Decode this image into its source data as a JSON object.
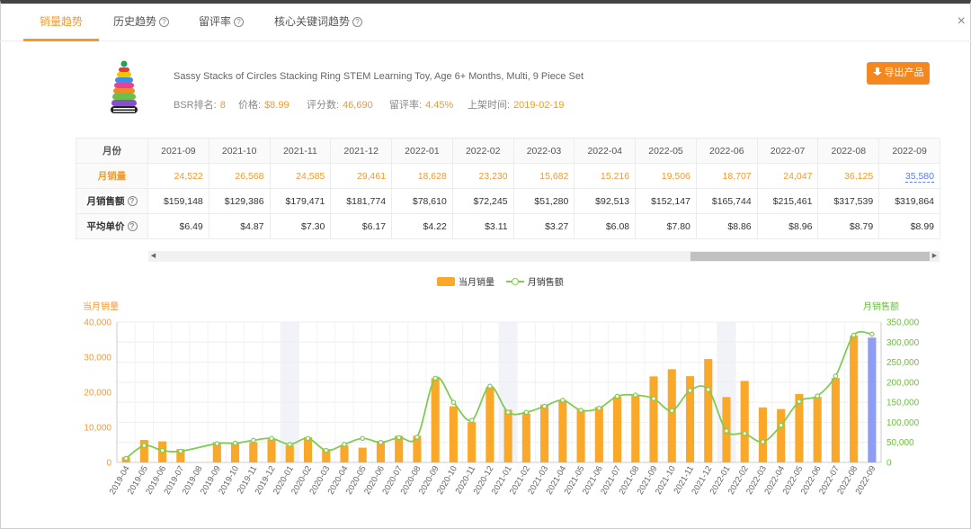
{
  "tabs": [
    {
      "label": "销量趋势",
      "active": true,
      "help": false
    },
    {
      "label": "历史趋势",
      "active": false,
      "help": true
    },
    {
      "label": "留评率",
      "active": false,
      "help": true
    },
    {
      "label": "核心关键词趋势",
      "active": false,
      "help": true
    }
  ],
  "close_label": "×",
  "product": {
    "title": "Sassy Stacks of Circles Stacking Ring STEM Learning Toy, Age 6+ Months, Multi, 9 Piece Set",
    "meta": [
      {
        "key": "BSR排名:",
        "value": "8"
      },
      {
        "key": "价格:",
        "value": "$8.99"
      },
      {
        "key": "评分数:",
        "value": "46,690"
      },
      {
        "key": "留评率:",
        "value": "4.45%"
      },
      {
        "key": "上架时间:",
        "value": "2019-02-19"
      }
    ],
    "export_label": "导出产品"
  },
  "table": {
    "header_label": "月份",
    "months": [
      "2021-09",
      "2021-10",
      "2021-11",
      "2021-12",
      "2022-01",
      "2022-02",
      "2022-03",
      "2022-04",
      "2022-05",
      "2022-06",
      "2022-07",
      "2022-08",
      "2022-09"
    ],
    "rows": [
      {
        "label": "月销量",
        "style": "orange",
        "values": [
          "24,522",
          "26,568",
          "24,585",
          "29,461",
          "18,628",
          "23,230",
          "15,682",
          "15,216",
          "19,506",
          "18,707",
          "24,047",
          "36,125",
          "35,580"
        ]
      },
      {
        "label": "月销售额",
        "style": "normal",
        "values": [
          "$159,148",
          "$129,386",
          "$179,471",
          "$181,774",
          "$78,610",
          "$72,245",
          "$51,280",
          "$92,513",
          "$152,147",
          "$165,744",
          "$215,461",
          "$317,539",
          "$319,864"
        ]
      },
      {
        "label": "平均单价",
        "style": "normal",
        "values": [
          "$6.49",
          "$4.87",
          "$7.30",
          "$6.17",
          "$4.22",
          "$3.11",
          "$3.27",
          "$6.08",
          "$7.80",
          "$8.86",
          "$8.96",
          "$8.79",
          "$8.99"
        ]
      }
    ]
  },
  "colors": {
    "accent": "#f39a2b",
    "bar": "#f9a82a",
    "bar_last": "#8f9cf5",
    "line": "#7fcc52"
  },
  "chart_data": {
    "type": "bar+line",
    "legend": [
      "当月销量",
      "月销售额"
    ],
    "legend_position": "top-center",
    "y_left_label": "当月销量",
    "y_right_label": "月销售额",
    "y_left_range": [
      0,
      40000
    ],
    "y_left_ticks": [
      "0",
      "10,000",
      "20,000",
      "30,000",
      "40,000"
    ],
    "y_right_range": [
      0,
      350000
    ],
    "y_right_ticks": [
      "0",
      "50,000",
      "100,000",
      "150,000",
      "200,000",
      "250,000",
      "300,000",
      "350,000"
    ],
    "categories": [
      "2019-04",
      "2019-05",
      "2019-06",
      "2019-07",
      "2019-08",
      "2019-09",
      "2019-10",
      "2019-11",
      "2019-12",
      "2020-01",
      "2020-02",
      "2020-03",
      "2020-04",
      "2020-05",
      "2020-06",
      "2020-07",
      "2020-08",
      "2020-09",
      "2020-10",
      "2020-11",
      "2020-12",
      "2021-01",
      "2021-02",
      "2021-03",
      "2021-04",
      "2021-05",
      "2021-06",
      "2021-07",
      "2021-08",
      "2021-09",
      "2021-10",
      "2021-11",
      "2021-12",
      "2022-01",
      "2022-02",
      "2022-03",
      "2022-04",
      "2022-05",
      "2022-06",
      "2022-07",
      "2022-08",
      "2022-09"
    ],
    "series": [
      {
        "name": "当月销量",
        "type": "bar",
        "axis": "left",
        "values": [
          1500,
          6400,
          6000,
          3800,
          0,
          5800,
          5600,
          5800,
          6600,
          4900,
          7200,
          3800,
          4900,
          4200,
          6100,
          7600,
          7600,
          24000,
          16000,
          11500,
          21500,
          15000,
          14000,
          16500,
          17800,
          15000,
          15800,
          18800,
          19000,
          24522,
          26568,
          24585,
          29461,
          18628,
          23230,
          15682,
          15216,
          19506,
          18707,
          24047,
          36125,
          35580
        ]
      },
      {
        "name": "月销售额",
        "type": "line",
        "axis": "right",
        "values": [
          10000,
          42000,
          30000,
          28000,
          null,
          47000,
          48000,
          55000,
          60000,
          45000,
          60000,
          30000,
          45000,
          60000,
          50000,
          62000,
          63000,
          210000,
          150000,
          105000,
          190000,
          125000,
          125000,
          140000,
          155000,
          130000,
          135000,
          165000,
          168000,
          159148,
          129386,
          179471,
          181774,
          78610,
          72245,
          51280,
          92513,
          152147,
          165744,
          215461,
          317539,
          319864
        ]
      }
    ],
    "grid": true
  }
}
